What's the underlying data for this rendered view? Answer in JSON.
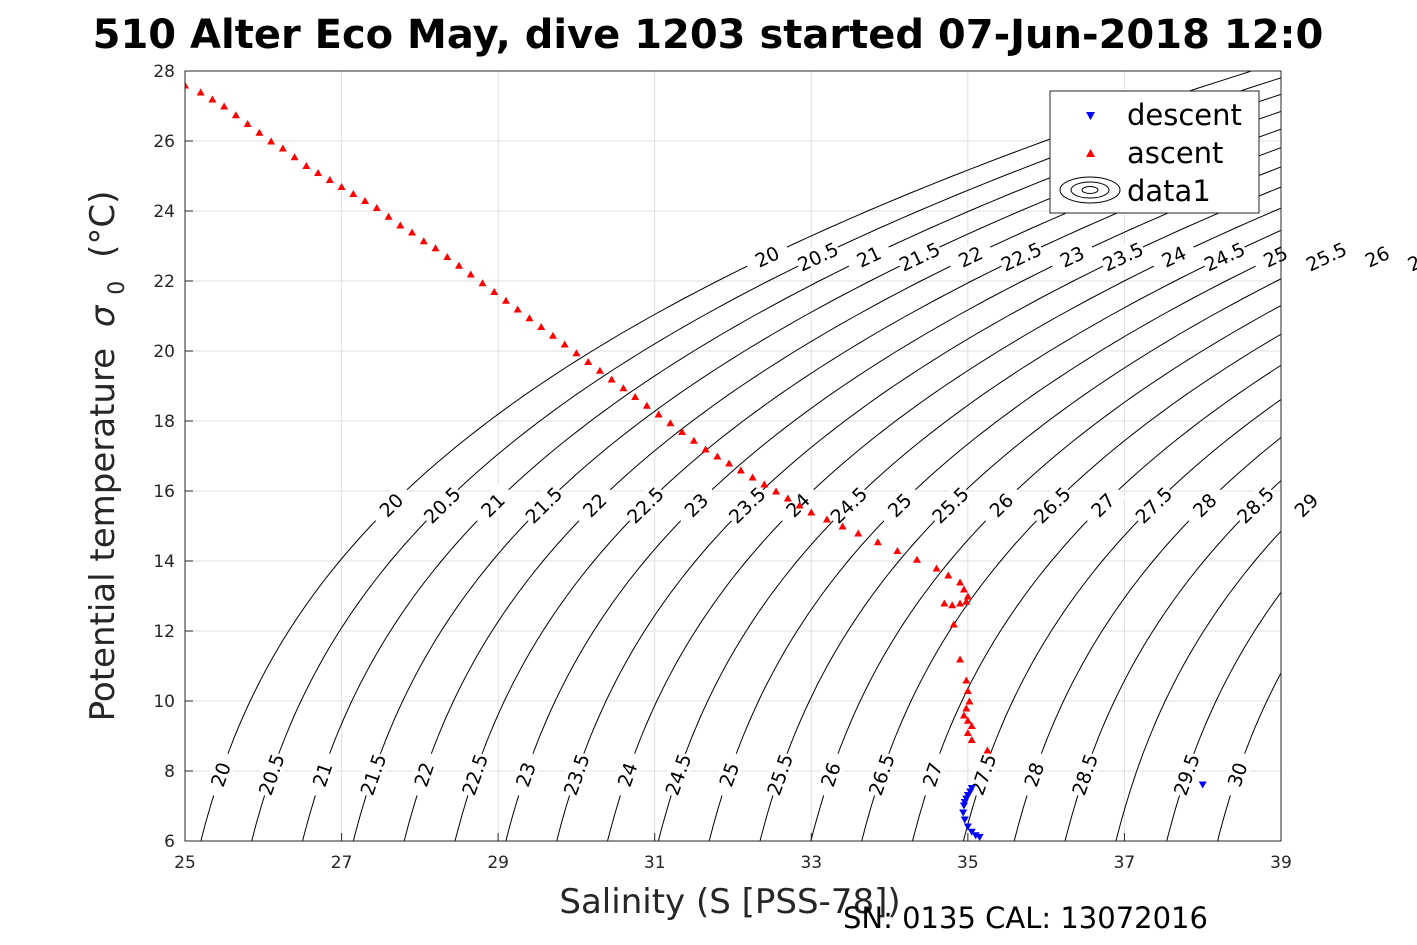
{
  "chart_data": {
    "type": "scatter",
    "title": "510 Alter Eco May, dive 1203 started 07-Jun-2018 12:0",
    "xlabel": "Salinity (S [PSS-78])",
    "ylabel": "Potential temperature",
    "ylabel_sigma": "σ",
    "ylabel_sub": "0",
    "ylabel_unit": "(°C)",
    "xlim": [
      25,
      39
    ],
    "ylim": [
      6,
      28
    ],
    "xticks": [
      "25",
      "27",
      "29",
      "31",
      "33",
      "35",
      "37",
      "39"
    ],
    "yticks": [
      "6",
      "8",
      "10",
      "12",
      "14",
      "16",
      "18",
      "20",
      "22",
      "24",
      "26",
      "28"
    ],
    "grid": true,
    "legend_position": "top-right",
    "legend": [
      "descent",
      "ascent",
      "data1"
    ],
    "footer": "SN: 0135  CAL: 13072016",
    "contours": [
      {
        "level": "20",
        "labels": [
          [
            -0.5,
            22.7
          ],
          [
            -0.5,
            15.6
          ],
          [
            -0.5,
            7.9
          ]
        ]
      },
      {
        "level": "20.5",
        "labels": [
          [
            -0.5,
            22.7
          ],
          [
            -0.5,
            15.6
          ],
          [
            -0.5,
            7.9
          ]
        ]
      },
      {
        "level": "21",
        "labels": [
          [
            -0.5,
            22.7
          ],
          [
            -0.5,
            15.6
          ],
          [
            -0.5,
            7.9
          ]
        ]
      },
      {
        "level": "21.5",
        "labels": [
          [
            -0.5,
            22.7
          ],
          [
            -0.5,
            15.6
          ],
          [
            -0.5,
            7.9
          ]
        ]
      },
      {
        "level": "22",
        "labels": [
          [
            -0.5,
            22.7
          ],
          [
            -0.5,
            15.6
          ],
          [
            -0.5,
            7.9
          ]
        ]
      },
      {
        "level": "22.5",
        "labels": [
          [
            -0.5,
            22.7
          ],
          [
            -0.5,
            15.6
          ],
          [
            -0.5,
            7.9
          ]
        ]
      },
      {
        "level": "23",
        "labels": [
          [
            -0.5,
            22.7
          ],
          [
            -0.5,
            15.6
          ],
          [
            -0.5,
            7.9
          ]
        ]
      },
      {
        "level": "23.5",
        "labels": [
          [
            -0.5,
            22.7
          ],
          [
            -0.5,
            15.6
          ],
          [
            -0.5,
            7.9
          ]
        ]
      },
      {
        "level": "24",
        "labels": [
          [
            -0.5,
            22.7
          ],
          [
            -0.5,
            15.6
          ],
          [
            -0.5,
            7.9
          ]
        ]
      },
      {
        "level": "24.5",
        "labels": [
          [
            -0.5,
            22.7
          ],
          [
            -0.5,
            15.6
          ],
          [
            -0.5,
            7.9
          ]
        ]
      },
      {
        "level": "25",
        "labels": [
          [
            -0.5,
            22.7
          ],
          [
            -0.5,
            15.6
          ],
          [
            -0.5,
            7.9
          ]
        ]
      },
      {
        "level": "25.5",
        "labels": [
          [
            -0.5,
            22.7
          ],
          [
            -0.5,
            15.6
          ],
          [
            -0.5,
            7.9
          ]
        ]
      },
      {
        "level": "26",
        "labels": [
          [
            -0.5,
            22.7
          ],
          [
            -0.5,
            15.6
          ],
          [
            -0.5,
            7.9
          ]
        ]
      },
      {
        "level": "26.5",
        "labels": [
          [
            -0.5,
            22.7
          ],
          [
            -0.5,
            15.6
          ],
          [
            -0.5,
            7.9
          ]
        ]
      },
      {
        "level": "27",
        "labels": [
          [
            -0.5,
            22.7
          ],
          [
            -0.5,
            15.6
          ],
          [
            -0.5,
            7.9
          ]
        ]
      },
      {
        "level": "27.5",
        "labels": [
          [
            -0.5,
            15.6
          ],
          [
            -0.5,
            7.9
          ]
        ]
      },
      {
        "level": "28",
        "labels": [
          [
            -0.5,
            15.6
          ],
          [
            -0.5,
            7.9
          ]
        ]
      },
      {
        "level": "28.5",
        "labels": [
          [
            -0.5,
            15.6
          ],
          [
            -0.5,
            7.9
          ]
        ]
      },
      {
        "level": "29",
        "labels": [
          [
            -0.5,
            15.6
          ]
        ]
      },
      {
        "level": "29.5",
        "labels": [
          [
            -0.5,
            7.9
          ]
        ]
      },
      {
        "level": "30",
        "labels": [
          [
            -0.5,
            7.9
          ]
        ]
      }
    ],
    "series": [
      {
        "name": "descent",
        "color": "#0000ff",
        "marker": "triangle-down",
        "points": [
          [
            35.05,
            7.5
          ],
          [
            35.03,
            7.4
          ],
          [
            35.0,
            7.3
          ],
          [
            34.98,
            7.2
          ],
          [
            34.96,
            7.1
          ],
          [
            34.95,
            7.0
          ],
          [
            34.94,
            6.8
          ],
          [
            34.96,
            6.6
          ],
          [
            35.0,
            6.4
          ],
          [
            35.05,
            6.25
          ],
          [
            35.1,
            6.15
          ],
          [
            35.15,
            6.1
          ],
          [
            38.0,
            7.6
          ]
        ]
      },
      {
        "name": "ascent",
        "color": "#ff0000",
        "marker": "triangle-up",
        "points": [
          [
            25.0,
            27.6
          ],
          [
            25.2,
            27.4
          ],
          [
            25.35,
            27.2
          ],
          [
            25.5,
            27.0
          ],
          [
            25.65,
            26.75
          ],
          [
            25.8,
            26.5
          ],
          [
            25.95,
            26.25
          ],
          [
            26.1,
            26.0
          ],
          [
            26.25,
            25.8
          ],
          [
            26.4,
            25.55
          ],
          [
            26.55,
            25.3
          ],
          [
            26.7,
            25.1
          ],
          [
            26.85,
            24.9
          ],
          [
            27.0,
            24.7
          ],
          [
            27.15,
            24.5
          ],
          [
            27.3,
            24.3
          ],
          [
            27.45,
            24.1
          ],
          [
            27.6,
            23.85
          ],
          [
            27.75,
            23.6
          ],
          [
            27.9,
            23.4
          ],
          [
            28.05,
            23.15
          ],
          [
            28.2,
            22.95
          ],
          [
            28.35,
            22.7
          ],
          [
            28.5,
            22.45
          ],
          [
            28.65,
            22.2
          ],
          [
            28.8,
            21.95
          ],
          [
            28.95,
            21.7
          ],
          [
            29.1,
            21.45
          ],
          [
            29.25,
            21.2
          ],
          [
            29.4,
            20.95
          ],
          [
            29.55,
            20.7
          ],
          [
            29.7,
            20.45
          ],
          [
            29.85,
            20.2
          ],
          [
            30.0,
            19.95
          ],
          [
            30.15,
            19.7
          ],
          [
            30.3,
            19.45
          ],
          [
            30.45,
            19.2
          ],
          [
            30.6,
            18.95
          ],
          [
            30.75,
            18.7
          ],
          [
            30.9,
            18.45
          ],
          [
            31.05,
            18.2
          ],
          [
            31.2,
            17.95
          ],
          [
            31.35,
            17.7
          ],
          [
            31.5,
            17.45
          ],
          [
            31.65,
            17.2
          ],
          [
            31.8,
            17.0
          ],
          [
            31.95,
            16.8
          ],
          [
            32.1,
            16.6
          ],
          [
            32.25,
            16.4
          ],
          [
            32.4,
            16.2
          ],
          [
            32.55,
            16.0
          ],
          [
            32.7,
            15.8
          ],
          [
            32.85,
            15.6
          ],
          [
            33.0,
            15.4
          ],
          [
            33.2,
            15.2
          ],
          [
            33.4,
            15.0
          ],
          [
            33.6,
            14.8
          ],
          [
            33.85,
            14.55
          ],
          [
            34.1,
            14.3
          ],
          [
            34.35,
            14.05
          ],
          [
            34.6,
            13.8
          ],
          [
            34.75,
            13.6
          ],
          [
            34.9,
            13.4
          ],
          [
            34.95,
            13.2
          ],
          [
            35.0,
            13.0
          ],
          [
            34.98,
            12.85
          ],
          [
            34.9,
            12.8
          ],
          [
            34.8,
            12.75
          ],
          [
            34.7,
            12.8
          ],
          [
            34.82,
            12.2
          ],
          [
            34.9,
            11.2
          ],
          [
            34.98,
            10.6
          ],
          [
            35.0,
            10.3
          ],
          [
            35.02,
            10.0
          ],
          [
            34.98,
            9.8
          ],
          [
            34.95,
            9.6
          ],
          [
            35.0,
            9.45
          ],
          [
            35.05,
            9.3
          ],
          [
            35.0,
            9.1
          ],
          [
            35.25,
            8.6
          ],
          [
            35.05,
            8.9
          ]
        ]
      }
    ]
  }
}
